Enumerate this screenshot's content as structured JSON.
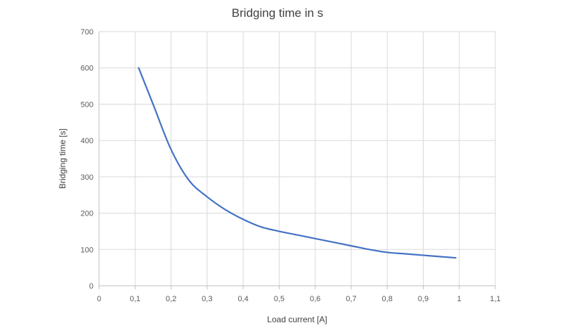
{
  "chart_data": {
    "type": "line",
    "title": "Bridging time in s",
    "xlabel": "Load current [A]",
    "ylabel": "Bridging time [s]",
    "xlim": [
      0,
      1.1
    ],
    "ylim": [
      0,
      700
    ],
    "xticks": [
      0,
      0.1,
      0.2,
      0.3,
      0.4,
      0.5,
      0.6,
      0.7,
      0.8,
      0.9,
      1,
      1.1
    ],
    "xtick_labels": [
      "0",
      "0,1",
      "0,2",
      "0,3",
      "0,4",
      "0,5",
      "0,6",
      "0,7",
      "0,8",
      "0,9",
      "1",
      "1,1"
    ],
    "yticks": [
      0,
      100,
      200,
      300,
      400,
      500,
      600,
      700
    ],
    "ytick_labels": [
      "0",
      "100",
      "200",
      "300",
      "400",
      "500",
      "600",
      "700"
    ],
    "grid": true,
    "legend": "none",
    "series": [
      {
        "color": "#4472c4",
        "x": [
          0.11,
          0.15,
          0.2,
          0.25,
          0.3,
          0.35,
          0.4,
          0.45,
          0.5,
          0.55,
          0.6,
          0.65,
          0.7,
          0.75,
          0.8,
          0.85,
          0.9,
          0.95,
          0.99
        ],
        "y": [
          600,
          500,
          375,
          290,
          245,
          210,
          183,
          162,
          150,
          140,
          130,
          120,
          110,
          100,
          92,
          88,
          84,
          80,
          77
        ]
      }
    ]
  }
}
